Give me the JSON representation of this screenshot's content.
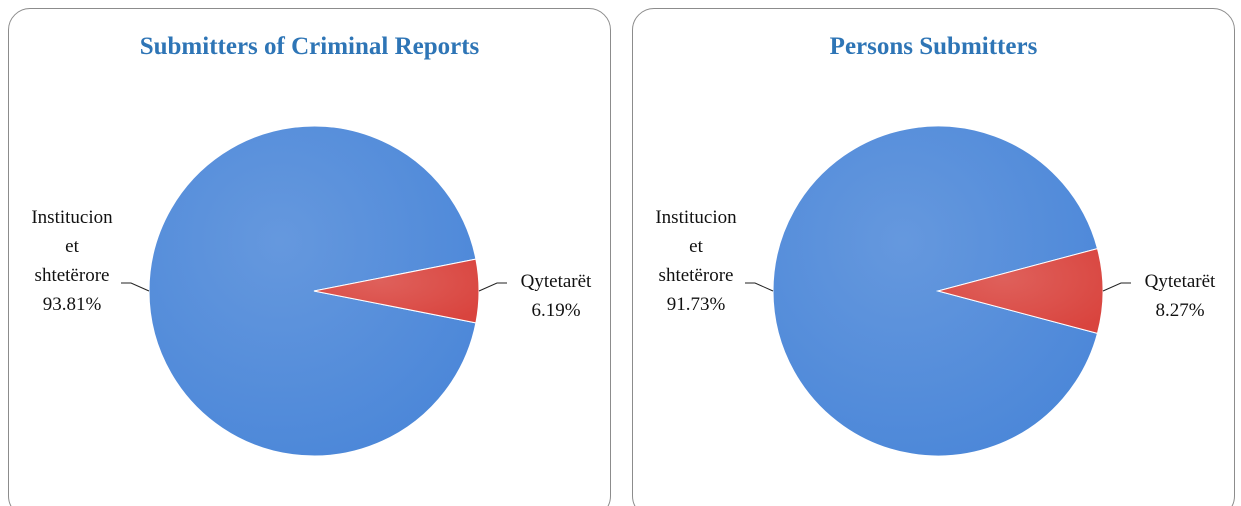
{
  "chart_data": [
    {
      "type": "pie",
      "title": "Submitters of Criminal Reports",
      "categories": [
        "Institucionet shtetërore",
        "Qytetarët"
      ],
      "values": [
        93.81,
        6.19
      ],
      "value_labels": [
        "93.81%",
        "6.19%"
      ],
      "colors": [
        "#4a86d8",
        "#d9443e"
      ]
    },
    {
      "type": "pie",
      "title": "Persons Submitters",
      "categories": [
        "Institucionet shtetërore",
        "Qytetarët"
      ],
      "values": [
        91.73,
        8.27
      ],
      "value_labels": [
        "91.73%",
        "8.27%"
      ],
      "colors": [
        "#4a86d8",
        "#d9443e"
      ]
    }
  ]
}
